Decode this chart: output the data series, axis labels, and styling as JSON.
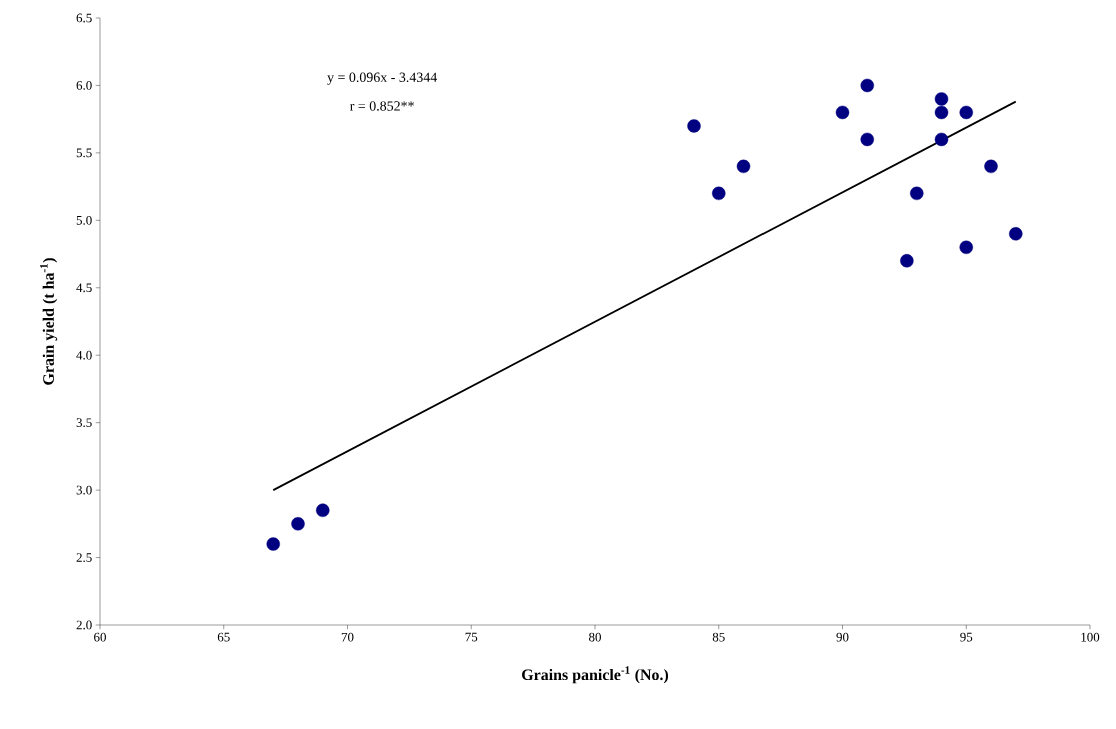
{
  "chart_data": {
    "type": "scatter",
    "xlabel": "Grains panicle$^{-1}$ (No.)",
    "ylabel": "Grain yield (t ha$^{-1}$)",
    "annotations": [
      "y = 0.096x - 3.4344",
      "r = 0.852**"
    ],
    "xlim": [
      60,
      100
    ],
    "xticks": [
      60,
      65,
      70,
      75,
      80,
      85,
      90,
      95,
      100
    ],
    "ylim": [
      2,
      6.5
    ],
    "yticks": [
      {
        "value": 2,
        "label": "2.0"
      },
      {
        "value": 2.5,
        "label": "2.5"
      },
      {
        "value": 3,
        "label": "3.0"
      },
      {
        "value": 3.5,
        "label": "3.5"
      },
      {
        "value": 4,
        "label": "4.0"
      },
      {
        "value": 4.5,
        "label": "4.5"
      },
      {
        "value": 5,
        "label": "5.0"
      },
      {
        "value": 5.5,
        "label": "5.5"
      },
      {
        "value": 6,
        "label": "6.0"
      },
      {
        "value": 6.5,
        "label": "6.5"
      }
    ],
    "grid": false,
    "series": [
      {
        "color": "#000080",
        "marker": "circle",
        "x": [
          67,
          68,
          69,
          84,
          85,
          86,
          90,
          91,
          91,
          92.6,
          93,
          94,
          94,
          94,
          95,
          95,
          96,
          97
        ],
        "values": [
          2.6,
          2.75,
          2.85,
          5.7,
          5.2,
          5.4,
          5.8,
          6.0,
          5.6,
          4.7,
          5.2,
          5.9,
          5.8,
          5.6,
          5.8,
          4.8,
          5.4,
          4.9
        ]
      },
      {
        "type": "line",
        "color": "#000000",
        "line_style": "solid",
        "marker": "none",
        "x": [
          67,
          97
        ],
        "values": [
          3.0,
          5.88
        ]
      }
    ]
  }
}
